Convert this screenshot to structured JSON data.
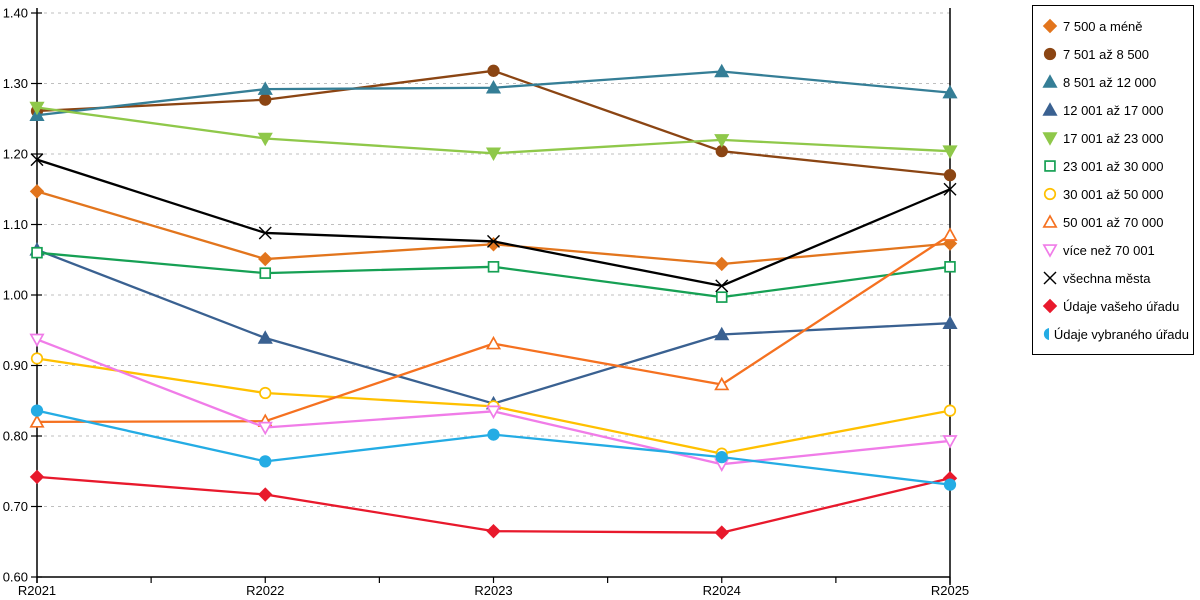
{
  "chart_data": {
    "type": "line",
    "title": "",
    "xlabel": "",
    "ylabel": "",
    "categories": [
      "R2021",
      "R2022",
      "R2023",
      "R2024",
      "R2025"
    ],
    "y_axis": {
      "min": 0.6,
      "max": 1.4,
      "step": 0.1,
      "tick_format": "0.00"
    },
    "grid": {
      "horizontal": true,
      "style": "dashed",
      "color": "#bfbfbf"
    },
    "legend_position": "top-right",
    "series": [
      {
        "name": "7 500 a méně",
        "color": "#e2751d",
        "marker": "diamond",
        "fill": "filled",
        "values": [
          1.147,
          1.051,
          1.072,
          1.044,
          1.073
        ]
      },
      {
        "name": "7 501 až 8 500",
        "color": "#8b4513",
        "marker": "circle",
        "fill": "filled",
        "values": [
          1.261,
          1.277,
          1.318,
          1.204,
          1.17
        ]
      },
      {
        "name": "8 501 až 12 000",
        "color": "#357e96",
        "marker": "triangle-up",
        "fill": "filled",
        "values": [
          1.255,
          1.292,
          1.294,
          1.317,
          1.287
        ]
      },
      {
        "name": "12 001 až 17 000",
        "color": "#3a6191",
        "marker": "triangle-up",
        "fill": "filled",
        "values": [
          1.064,
          0.939,
          0.846,
          0.944,
          0.96
        ]
      },
      {
        "name": "17 001 až 23 000",
        "color": "#8fc84a",
        "marker": "triangle-down",
        "fill": "filled",
        "values": [
          1.266,
          1.222,
          1.201,
          1.22,
          1.204
        ]
      },
      {
        "name": "23 001 až 30 000",
        "color": "#16a054",
        "marker": "square",
        "fill": "open",
        "values": [
          1.06,
          1.031,
          1.04,
          0.997,
          1.04
        ]
      },
      {
        "name": "30 001 až 50 000",
        "color": "#ffc000",
        "marker": "circle",
        "fill": "open",
        "values": [
          0.91,
          0.861,
          0.842,
          0.775,
          0.836
        ]
      },
      {
        "name": "50 001 až 70 000",
        "color": "#f57120",
        "marker": "triangle-up",
        "fill": "open",
        "values": [
          0.82,
          0.821,
          0.931,
          0.873,
          1.085
        ]
      },
      {
        "name": "více než 70 001",
        "color": "#f07ce8",
        "marker": "triangle-down",
        "fill": "open",
        "values": [
          0.937,
          0.812,
          0.835,
          0.76,
          0.793
        ]
      },
      {
        "name": "všechna města",
        "color": "#000000",
        "marker": "x",
        "fill": "open",
        "values": [
          1.192,
          1.088,
          1.076,
          1.013,
          1.15
        ]
      },
      {
        "name": "Údaje vašeho úřadu",
        "color": "#e8192c",
        "marker": "diamond",
        "fill": "filled",
        "values": [
          0.742,
          0.717,
          0.665,
          0.663,
          0.74
        ]
      },
      {
        "name": "Údaje vybraného úřadu",
        "color": "#24ace4",
        "marker": "circle",
        "fill": "filled",
        "values": [
          0.836,
          0.764,
          0.802,
          0.77,
          0.731
        ]
      }
    ]
  }
}
